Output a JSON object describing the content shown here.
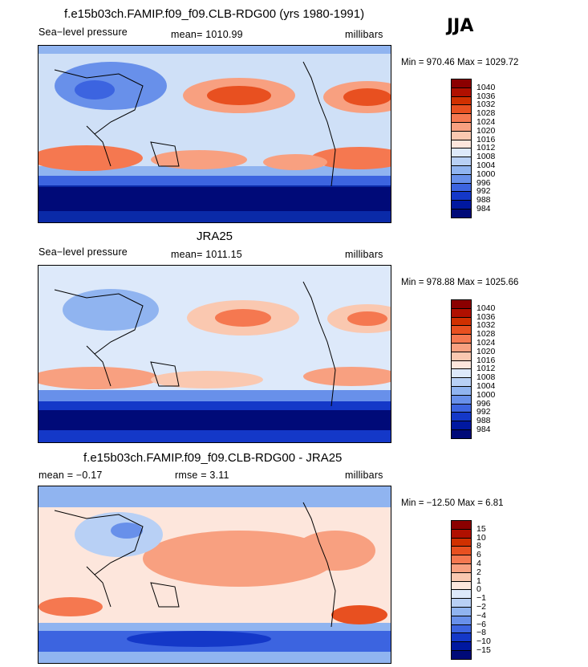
{
  "season": "JJA",
  "panels": [
    {
      "title": "f.e15b03ch.FAMIP.f09_f09.CLB-RDG00 (yrs 1980-1991)",
      "left": "Sea−level pressure",
      "center": "mean= 1010.99",
      "units": "millibars",
      "minmax": "Min = 970.46 Max = 1029.72"
    },
    {
      "title": "JRA25",
      "left": "Sea−level pressure",
      "center": "mean= 1011.15",
      "units": "millibars",
      "minmax": "Min = 978.88 Max = 1025.66"
    },
    {
      "title": "f.e15b03ch.FAMIP.f09_f09.CLB-RDG00 - JRA25",
      "left": "mean =   −0.17",
      "center": "rmse =    3.11",
      "units": "millibars",
      "minmax": "Min = −12.50 Max =    6.81"
    }
  ],
  "colorbars": [
    {
      "labels": [
        "1040",
        "1036",
        "1032",
        "1028",
        "1024",
        "1020",
        "1016",
        "1012",
        "1008",
        "1004",
        "1000",
        "996",
        "992",
        "988",
        "984"
      ],
      "colors": [
        "#8b0000",
        "#b01000",
        "#d03000",
        "#e85020",
        "#f57850",
        "#f8a080",
        "#fac8b0",
        "#fde6dc",
        "#dde9fa",
        "#b8d0f5",
        "#90b4f0",
        "#6890ea",
        "#3c64e0",
        "#1438c8",
        "#0018a0",
        "#000a78"
      ]
    },
    {
      "labels": [
        "1040",
        "1036",
        "1032",
        "1028",
        "1024",
        "1020",
        "1016",
        "1012",
        "1008",
        "1004",
        "1000",
        "996",
        "992",
        "988",
        "984"
      ],
      "colors": [
        "#8b0000",
        "#b01000",
        "#d03000",
        "#e85020",
        "#f57850",
        "#f8a080",
        "#fac8b0",
        "#fde6dc",
        "#dde9fa",
        "#b8d0f5",
        "#90b4f0",
        "#6890ea",
        "#3c64e0",
        "#1438c8",
        "#0018a0",
        "#000a78"
      ]
    },
    {
      "labels": [
        "15",
        "10",
        "8",
        "6",
        "4",
        "2",
        "1",
        "0",
        "−1",
        "−2",
        "−4",
        "−6",
        "−8",
        "−10",
        "−15"
      ],
      "colors": [
        "#8b0000",
        "#b01000",
        "#d03000",
        "#e85020",
        "#f57850",
        "#f8a080",
        "#fac8b0",
        "#fde6dc",
        "#dde9fa",
        "#b8d0f5",
        "#90b4f0",
        "#6890ea",
        "#3c64e0",
        "#1438c8",
        "#0018a0",
        "#000a78"
      ]
    }
  ]
}
